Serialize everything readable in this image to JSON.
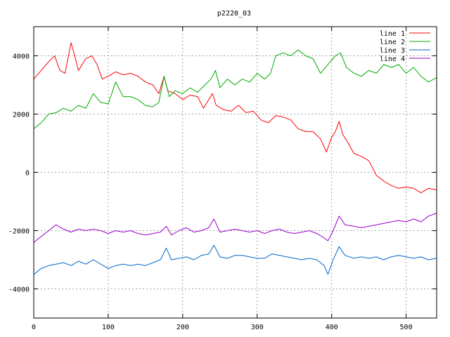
{
  "chart_data": {
    "type": "line",
    "title": "p2220_03",
    "xlabel": "",
    "ylabel": "",
    "xlim": [
      0,
      541
    ],
    "ylim": [
      -5000,
      5000
    ],
    "x_ticks": [
      0,
      100,
      200,
      300,
      400,
      500
    ],
    "y_ticks": [
      -4000,
      -2000,
      0,
      2000,
      4000
    ],
    "grid": true,
    "legend_position": "top-right",
    "series": [
      {
        "name": "line 1",
        "color": "#ff0000",
        "points": [
          [
            0,
            3200
          ],
          [
            10,
            3500
          ],
          [
            20,
            3800
          ],
          [
            28,
            4000
          ],
          [
            35,
            3500
          ],
          [
            42,
            3400
          ],
          [
            50,
            4450
          ],
          [
            55,
            4000
          ],
          [
            60,
            3500
          ],
          [
            70,
            3900
          ],
          [
            78,
            4000
          ],
          [
            85,
            3700
          ],
          [
            92,
            3200
          ],
          [
            100,
            3300
          ],
          [
            110,
            3450
          ],
          [
            120,
            3350
          ],
          [
            130,
            3400
          ],
          [
            140,
            3300
          ],
          [
            150,
            3100
          ],
          [
            160,
            3000
          ],
          [
            168,
            2700
          ],
          [
            175,
            3300
          ],
          [
            180,
            2800
          ],
          [
            190,
            2700
          ],
          [
            200,
            2500
          ],
          [
            210,
            2650
          ],
          [
            220,
            2600
          ],
          [
            228,
            2200
          ],
          [
            235,
            2500
          ],
          [
            240,
            2700
          ],
          [
            245,
            2300
          ],
          [
            255,
            2150
          ],
          [
            265,
            2100
          ],
          [
            275,
            2300
          ],
          [
            285,
            2050
          ],
          [
            295,
            2100
          ],
          [
            305,
            1800
          ],
          [
            315,
            1700
          ],
          [
            325,
            1950
          ],
          [
            335,
            1900
          ],
          [
            345,
            1800
          ],
          [
            355,
            1500
          ],
          [
            365,
            1400
          ],
          [
            375,
            1400
          ],
          [
            385,
            1150
          ],
          [
            393,
            700
          ],
          [
            400,
            1200
          ],
          [
            405,
            1400
          ],
          [
            410,
            1750
          ],
          [
            415,
            1300
          ],
          [
            420,
            1100
          ],
          [
            430,
            650
          ],
          [
            440,
            550
          ],
          [
            450,
            400
          ],
          [
            460,
            -100
          ],
          [
            470,
            -300
          ],
          [
            480,
            -450
          ],
          [
            490,
            -550
          ],
          [
            500,
            -500
          ],
          [
            510,
            -550
          ],
          [
            520,
            -700
          ],
          [
            530,
            -550
          ],
          [
            541,
            -600
          ]
        ]
      },
      {
        "name": "line 2",
        "color": "#00aa00",
        "points": [
          [
            0,
            1500
          ],
          [
            10,
            1700
          ],
          [
            20,
            2000
          ],
          [
            30,
            2050
          ],
          [
            40,
            2200
          ],
          [
            50,
            2100
          ],
          [
            60,
            2300
          ],
          [
            70,
            2200
          ],
          [
            80,
            2700
          ],
          [
            90,
            2400
          ],
          [
            100,
            2350
          ],
          [
            110,
            3100
          ],
          [
            120,
            2600
          ],
          [
            130,
            2600
          ],
          [
            140,
            2500
          ],
          [
            150,
            2300
          ],
          [
            160,
            2250
          ],
          [
            168,
            2400
          ],
          [
            175,
            3300
          ],
          [
            182,
            2600
          ],
          [
            190,
            2800
          ],
          [
            200,
            2700
          ],
          [
            210,
            2900
          ],
          [
            220,
            2750
          ],
          [
            230,
            3000
          ],
          [
            238,
            3200
          ],
          [
            244,
            3500
          ],
          [
            250,
            2900
          ],
          [
            260,
            3200
          ],
          [
            270,
            3000
          ],
          [
            280,
            3200
          ],
          [
            290,
            3100
          ],
          [
            300,
            3400
          ],
          [
            310,
            3200
          ],
          [
            318,
            3400
          ],
          [
            325,
            4000
          ],
          [
            335,
            4100
          ],
          [
            345,
            4000
          ],
          [
            355,
            4200
          ],
          [
            365,
            4000
          ],
          [
            375,
            3900
          ],
          [
            385,
            3400
          ],
          [
            395,
            3700
          ],
          [
            405,
            4000
          ],
          [
            412,
            4100
          ],
          [
            420,
            3600
          ],
          [
            430,
            3400
          ],
          [
            440,
            3300
          ],
          [
            450,
            3500
          ],
          [
            460,
            3400
          ],
          [
            470,
            3700
          ],
          [
            480,
            3600
          ],
          [
            490,
            3700
          ],
          [
            500,
            3400
          ],
          [
            510,
            3600
          ],
          [
            520,
            3300
          ],
          [
            530,
            3100
          ],
          [
            541,
            3250
          ]
        ]
      },
      {
        "name": "line 3",
        "color": "#0066cc",
        "points": [
          [
            0,
            -3500
          ],
          [
            10,
            -3300
          ],
          [
            20,
            -3200
          ],
          [
            30,
            -3150
          ],
          [
            40,
            -3100
          ],
          [
            50,
            -3200
          ],
          [
            60,
            -3050
          ],
          [
            70,
            -3150
          ],
          [
            80,
            -3000
          ],
          [
            90,
            -3150
          ],
          [
            100,
            -3300
          ],
          [
            110,
            -3200
          ],
          [
            120,
            -3150
          ],
          [
            130,
            -3200
          ],
          [
            140,
            -3150
          ],
          [
            150,
            -3200
          ],
          [
            160,
            -3100
          ],
          [
            170,
            -3000
          ],
          [
            178,
            -2600
          ],
          [
            185,
            -3000
          ],
          [
            195,
            -2950
          ],
          [
            205,
            -2900
          ],
          [
            215,
            -3000
          ],
          [
            225,
            -2850
          ],
          [
            235,
            -2800
          ],
          [
            242,
            -2500
          ],
          [
            250,
            -2900
          ],
          [
            260,
            -2950
          ],
          [
            270,
            -2850
          ],
          [
            280,
            -2850
          ],
          [
            290,
            -2900
          ],
          [
            300,
            -2950
          ],
          [
            310,
            -2950
          ],
          [
            320,
            -2800
          ],
          [
            330,
            -2850
          ],
          [
            340,
            -2900
          ],
          [
            350,
            -2950
          ],
          [
            360,
            -3000
          ],
          [
            370,
            -2950
          ],
          [
            380,
            -3000
          ],
          [
            390,
            -3200
          ],
          [
            395,
            -3500
          ],
          [
            402,
            -3000
          ],
          [
            410,
            -2550
          ],
          [
            418,
            -2850
          ],
          [
            430,
            -2950
          ],
          [
            440,
            -2900
          ],
          [
            450,
            -2950
          ],
          [
            460,
            -2900
          ],
          [
            470,
            -3000
          ],
          [
            480,
            -2900
          ],
          [
            490,
            -2850
          ],
          [
            500,
            -2900
          ],
          [
            510,
            -2950
          ],
          [
            520,
            -2900
          ],
          [
            530,
            -3000
          ],
          [
            541,
            -2950
          ]
        ]
      },
      {
        "name": "line 4",
        "color": "#9900cc",
        "points": [
          [
            0,
            -2400
          ],
          [
            10,
            -2200
          ],
          [
            20,
            -2000
          ],
          [
            30,
            -1800
          ],
          [
            40,
            -1950
          ],
          [
            50,
            -2050
          ],
          [
            60,
            -1950
          ],
          [
            70,
            -2000
          ],
          [
            80,
            -1950
          ],
          [
            90,
            -2000
          ],
          [
            100,
            -2100
          ],
          [
            110,
            -2000
          ],
          [
            120,
            -2050
          ],
          [
            130,
            -2000
          ],
          [
            140,
            -2100
          ],
          [
            150,
            -2150
          ],
          [
            160,
            -2100
          ],
          [
            170,
            -2050
          ],
          [
            178,
            -1850
          ],
          [
            185,
            -2150
          ],
          [
            195,
            -2000
          ],
          [
            205,
            -1900
          ],
          [
            215,
            -2050
          ],
          [
            225,
            -2000
          ],
          [
            235,
            -1900
          ],
          [
            242,
            -1600
          ],
          [
            250,
            -2050
          ],
          [
            260,
            -2000
          ],
          [
            270,
            -1950
          ],
          [
            280,
            -2000
          ],
          [
            290,
            -2050
          ],
          [
            300,
            -2000
          ],
          [
            310,
            -2100
          ],
          [
            320,
            -2000
          ],
          [
            330,
            -1950
          ],
          [
            340,
            -2050
          ],
          [
            350,
            -2100
          ],
          [
            360,
            -2050
          ],
          [
            370,
            -2000
          ],
          [
            380,
            -2100
          ],
          [
            390,
            -2250
          ],
          [
            395,
            -2350
          ],
          [
            402,
            -2000
          ],
          [
            410,
            -1500
          ],
          [
            418,
            -1800
          ],
          [
            430,
            -1850
          ],
          [
            440,
            -1900
          ],
          [
            450,
            -1850
          ],
          [
            460,
            -1800
          ],
          [
            470,
            -1750
          ],
          [
            480,
            -1700
          ],
          [
            490,
            -1650
          ],
          [
            500,
            -1700
          ],
          [
            510,
            -1600
          ],
          [
            520,
            -1700
          ],
          [
            530,
            -1500
          ],
          [
            541,
            -1400
          ]
        ]
      }
    ]
  }
}
